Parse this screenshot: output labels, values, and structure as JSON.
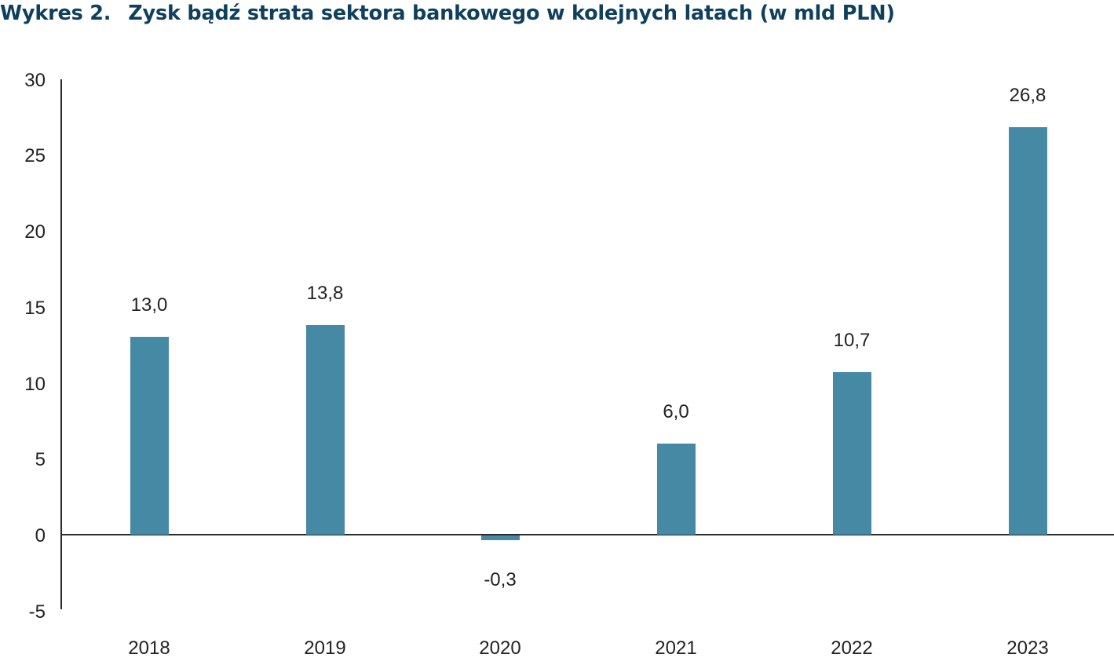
{
  "title": {
    "number": "Wykres 2.",
    "text": "Zysk bądź strata sektora bankowego w kolejnych latach (w mld PLN)"
  },
  "colors": {
    "title": "#0e3f5c",
    "bar": "#4589a5",
    "axis": "#2a2a2a",
    "text": "#222222"
  },
  "y_ticks": [
    "30",
    "25",
    "20",
    "15",
    "10",
    "5",
    "0",
    "-5"
  ],
  "bars": [
    {
      "year": "2018",
      "value": 13.0,
      "label": "13,0"
    },
    {
      "year": "2019",
      "value": 13.8,
      "label": "13,8"
    },
    {
      "year": "2020",
      "value": -0.3,
      "label": "-0,3"
    },
    {
      "year": "2021",
      "value": 6.0,
      "label": "6,0"
    },
    {
      "year": "2022",
      "value": 10.7,
      "label": "10,7"
    },
    {
      "year": "2023",
      "value": 26.8,
      "label": "26,8"
    }
  ],
  "chart_data": {
    "type": "bar",
    "title": "Wykres 2. Zysk bądź strata sektora bankowego w kolejnych latach (w mld PLN)",
    "categories": [
      "2018",
      "2019",
      "2020",
      "2021",
      "2022",
      "2023"
    ],
    "values": [
      13.0,
      13.8,
      -0.3,
      6.0,
      10.7,
      26.8
    ],
    "data_labels": [
      "13,0",
      "13,8",
      "-0,3",
      "6,0",
      "10,7",
      "26,8"
    ],
    "xlabel": "",
    "ylabel": "",
    "unit": "mld PLN",
    "ylim": [
      -5,
      30
    ],
    "yticks": [
      -5,
      0,
      5,
      10,
      15,
      20,
      25,
      30
    ],
    "grid": false,
    "legend": null
  }
}
